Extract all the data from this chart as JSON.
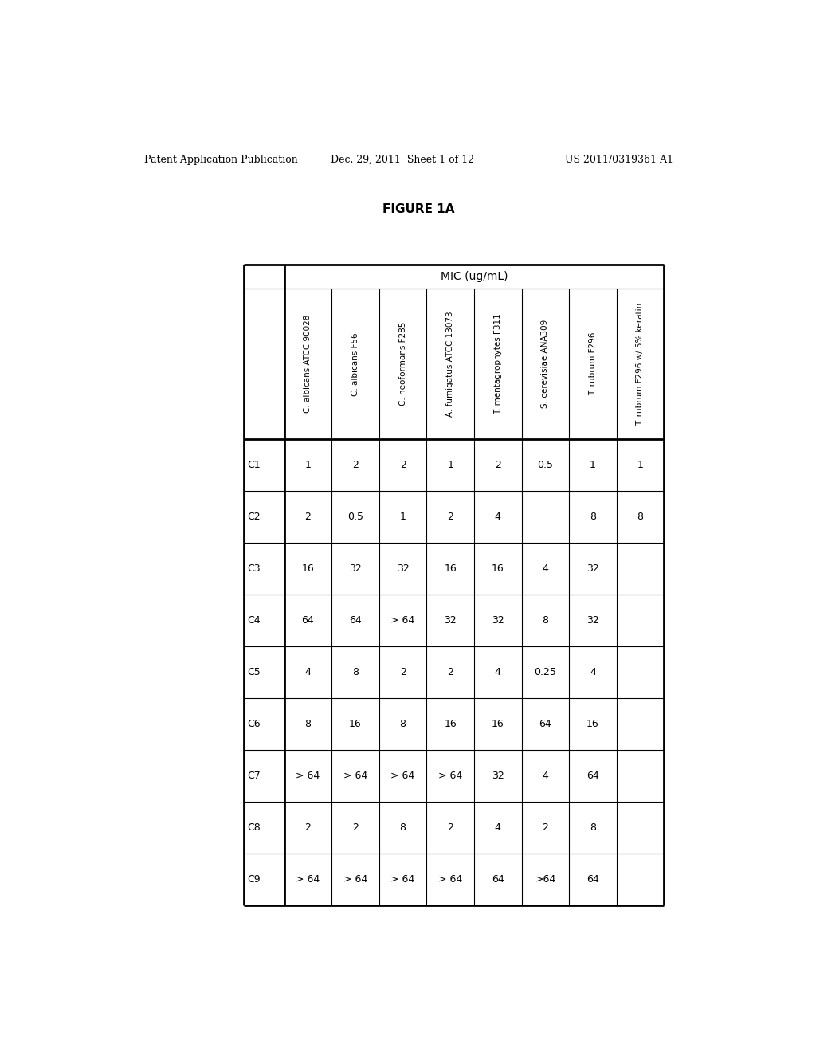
{
  "header_line1": "Patent Application Publication",
  "header_date": "Dec. 29, 2011  Sheet 1 of 12",
  "header_patent": "US 2011/0319361 A1",
  "figure_title": "FIGURE 1A",
  "table_header": "MIC (ug/mL)",
  "col_headers": [
    "C. albicans ATCC 90028",
    "C. albicans F56",
    "C. neoformans F285",
    "A. fumigatus ATCC 13073",
    "T. mentagrophytes F311",
    "S. cerevisiae ANA309",
    "T. rubrum F296",
    "T. rubrum F296 w/ 5% keratin"
  ],
  "row_labels": [
    "C1",
    "C2",
    "C3",
    "C4",
    "C5",
    "C6",
    "C7",
    "C8",
    "C9"
  ],
  "table_data": [
    [
      "1",
      "2",
      "2",
      "1",
      "2",
      "0.5",
      "1",
      "1"
    ],
    [
      "2",
      "0.5",
      "1",
      "2",
      "4",
      "",
      "8",
      "8"
    ],
    [
      "16",
      "32",
      "32",
      "16",
      "16",
      "4",
      "32",
      ""
    ],
    [
      "64",
      "64",
      "> 64",
      "32",
      "32",
      "8",
      "32",
      ""
    ],
    [
      "4",
      "8",
      "2",
      "2",
      "4",
      "0.25",
      "4",
      ""
    ],
    [
      "8",
      "16",
      "8",
      "16",
      "16",
      "64",
      "16",
      ""
    ],
    [
      "> 64",
      "> 64",
      "> 64",
      "> 64",
      "32",
      "4",
      "64",
      ""
    ],
    [
      "2",
      "2",
      "8",
      "2",
      "4",
      "2",
      "8",
      ""
    ],
    [
      "> 64",
      "> 64",
      "> 64",
      "> 64",
      "64",
      ">64",
      "64",
      ""
    ]
  ],
  "bg_color": "#ffffff",
  "text_color": "#000000",
  "header_fontsize": 9,
  "figure_title_fontsize": 11,
  "table_fontsize": 9
}
